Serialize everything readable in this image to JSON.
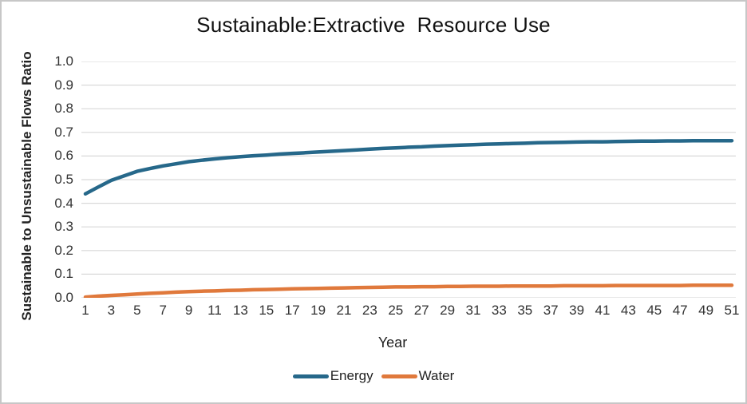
{
  "frame": {
    "border_color": "#c7c7c7",
    "background_color": "#ffffff"
  },
  "chart_data": {
    "type": "line",
    "title": "Sustainable:Extractive  Resource Use",
    "xlabel": "Year",
    "ylabel": "Sustainable to Unsustainable Flows Ratio",
    "x_range": [
      1,
      51
    ],
    "ylim": [
      0.0,
      1.0
    ],
    "grid": "horizontal",
    "grid_color": "#d9d9d9",
    "legend_position": "bottom",
    "y_ticks": [
      "0.0",
      "0.1",
      "0.2",
      "0.3",
      "0.4",
      "0.5",
      "0.6",
      "0.7",
      "0.8",
      "0.9",
      "1.0"
    ],
    "x_ticks": [
      1,
      3,
      5,
      7,
      9,
      11,
      13,
      15,
      17,
      19,
      21,
      23,
      25,
      27,
      29,
      31,
      33,
      35,
      37,
      39,
      41,
      43,
      45,
      47,
      49,
      51
    ],
    "x": [
      1,
      2,
      3,
      4,
      5,
      6,
      7,
      8,
      9,
      10,
      11,
      12,
      13,
      14,
      15,
      16,
      17,
      18,
      19,
      20,
      21,
      22,
      23,
      24,
      25,
      26,
      27,
      28,
      29,
      30,
      31,
      32,
      33,
      34,
      35,
      36,
      37,
      38,
      39,
      40,
      41,
      42,
      43,
      44,
      45,
      46,
      47,
      48,
      49,
      50,
      51
    ],
    "series": [
      {
        "name": "Energy",
        "color": "#26688a",
        "values": [
          0.44,
          0.469,
          0.497,
          0.516,
          0.535,
          0.547,
          0.558,
          0.567,
          0.576,
          0.582,
          0.588,
          0.593,
          0.597,
          0.601,
          0.604,
          0.608,
          0.611,
          0.614,
          0.617,
          0.62,
          0.623,
          0.626,
          0.629,
          0.632,
          0.634,
          0.637,
          0.639,
          0.642,
          0.644,
          0.646,
          0.648,
          0.65,
          0.651,
          0.653,
          0.654,
          0.656,
          0.657,
          0.658,
          0.659,
          0.66,
          0.66,
          0.661,
          0.662,
          0.663,
          0.663,
          0.664,
          0.664,
          0.665,
          0.665,
          0.665,
          0.665
        ]
      },
      {
        "name": "Water",
        "color": "#e0793c",
        "values": [
          0.003,
          0.007,
          0.01,
          0.013,
          0.016,
          0.019,
          0.021,
          0.024,
          0.026,
          0.028,
          0.029,
          0.031,
          0.032,
          0.034,
          0.035,
          0.036,
          0.038,
          0.039,
          0.04,
          0.041,
          0.042,
          0.043,
          0.044,
          0.045,
          0.046,
          0.046,
          0.047,
          0.047,
          0.048,
          0.048,
          0.049,
          0.049,
          0.049,
          0.05,
          0.05,
          0.05,
          0.05,
          0.051,
          0.051,
          0.051,
          0.051,
          0.052,
          0.052,
          0.052,
          0.052,
          0.052,
          0.052,
          0.053,
          0.053,
          0.053,
          0.053
        ]
      }
    ]
  }
}
